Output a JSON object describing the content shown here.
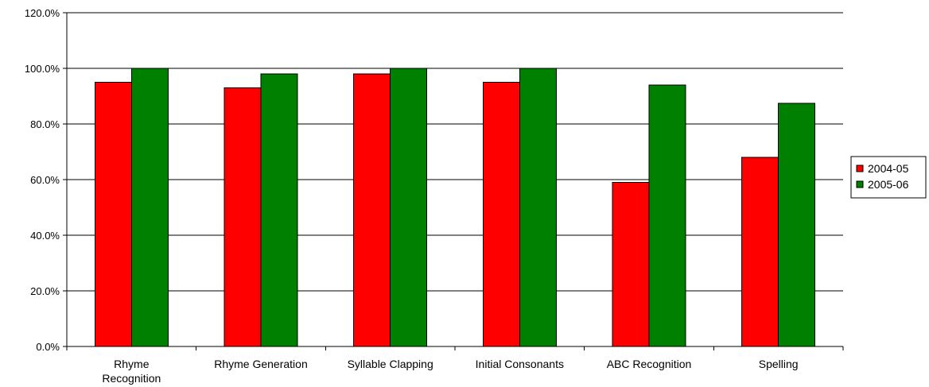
{
  "chart_data": {
    "type": "bar",
    "title": "",
    "xlabel": "",
    "ylabel": "",
    "categories": [
      [
        "Rhyme",
        "Recognition"
      ],
      [
        "Rhyme Generation"
      ],
      [
        "Syllable Clapping"
      ],
      [
        "Initial Consonants"
      ],
      [
        "ABC Recognition"
      ],
      [
        "Spelling"
      ]
    ],
    "series": [
      {
        "name": "2004-05",
        "color": "#ff0000",
        "values": [
          95.0,
          93.0,
          98.0,
          95.0,
          59.0,
          68.0
        ]
      },
      {
        "name": "2005-06",
        "color": "#008000",
        "values": [
          100.0,
          98.0,
          100.0,
          100.0,
          94.0,
          87.5
        ]
      }
    ],
    "ylim": [
      0,
      120
    ],
    "yticks": [
      0,
      20,
      40,
      60,
      80,
      100,
      120
    ],
    "ytick_labels": [
      "0.0%",
      "20.0%",
      "40.0%",
      "60.0%",
      "80.0%",
      "100.0%",
      "120.0%"
    ],
    "grid": true,
    "legend_position": "right"
  }
}
